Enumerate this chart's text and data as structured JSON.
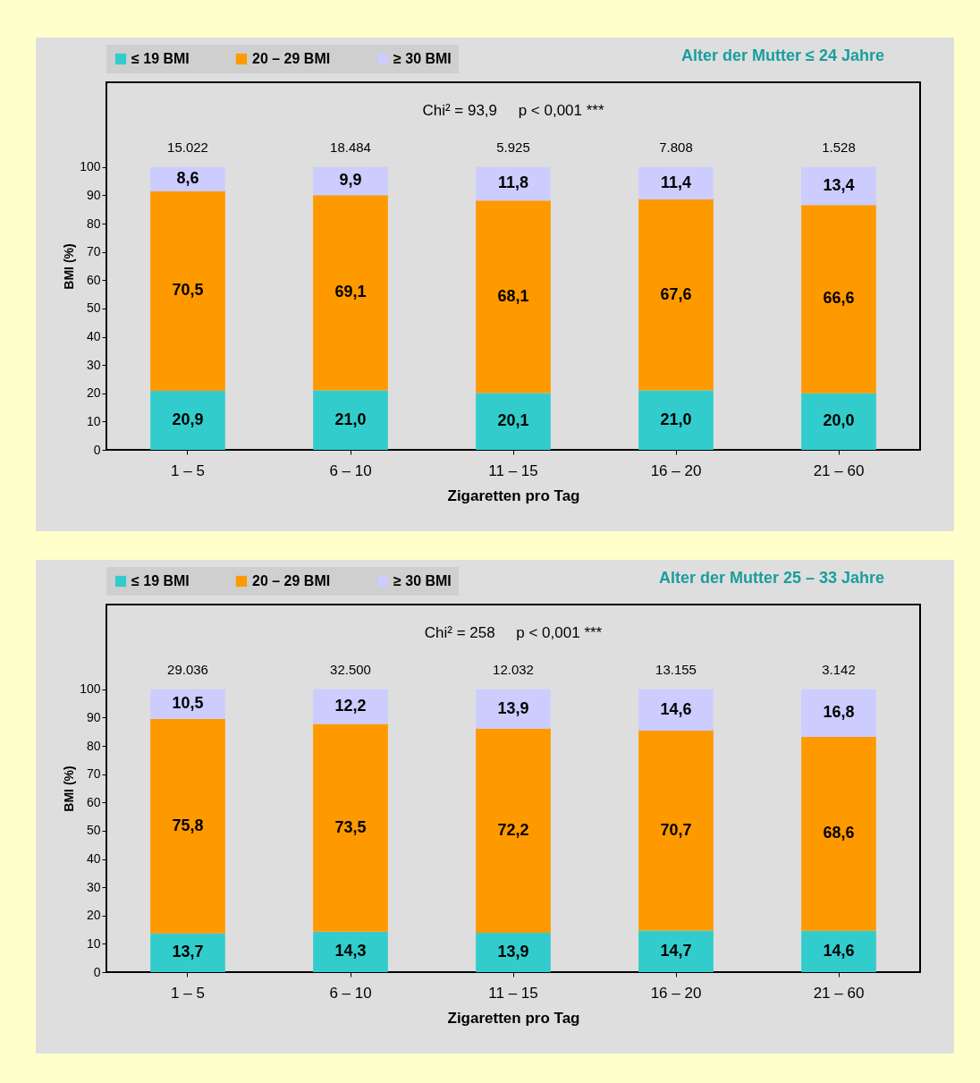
{
  "chart_data": [
    {
      "type": "bar",
      "title": "Alter der Mutter ≤ 24 Jahre",
      "xlabel": "Zigaretten pro Tag",
      "ylabel": "BMI (%)",
      "stacked": true,
      "legend": "top",
      "grid": false,
      "categories": [
        "1 – 5",
        "6 – 10",
        "11 – 15",
        "16 – 20",
        "21 – 60"
      ],
      "ylim": [
        0,
        130
      ],
      "yticks": [
        0,
        10,
        20,
        30,
        40,
        50,
        60,
        70,
        80,
        90,
        100
      ],
      "series": [
        {
          "name": "≤ 19 BMI",
          "color": "#33cccc",
          "values": [
            20.9,
            21.0,
            20.1,
            21.0,
            20.0
          ],
          "value_labels": [
            "20,9",
            "21,0",
            "20,1",
            "21,0",
            "20,0"
          ]
        },
        {
          "name": "20 – 29 BMI",
          "color": "#ff9900",
          "values": [
            70.5,
            69.1,
            68.1,
            67.6,
            66.6
          ],
          "value_labels": [
            "70,5",
            "69,1",
            "68,1",
            "67,6",
            "66,6"
          ]
        },
        {
          "name": "≥ 30 BMI",
          "color": "#ccccff",
          "values": [
            8.6,
            9.9,
            11.8,
            11.4,
            13.4
          ],
          "value_labels": [
            "8,6",
            "9,9",
            "11,8",
            "11,4",
            "13,4"
          ]
        }
      ],
      "annotations": [
        "Chi² = 93,9     p < 0,001 ***",
        "15.022",
        "18.484",
        "5.925",
        "7.808",
        "1.528"
      ]
    },
    {
      "type": "bar",
      "title": "Alter der Mutter 25 – 33 Jahre",
      "xlabel": "Zigaretten pro Tag",
      "ylabel": "BMI (%)",
      "stacked": true,
      "legend": "top",
      "grid": false,
      "categories": [
        "1 – 5",
        "6 – 10",
        "11 – 15",
        "16 – 20",
        "21 – 60"
      ],
      "ylim": [
        0,
        130
      ],
      "yticks": [
        0,
        10,
        20,
        30,
        40,
        50,
        60,
        70,
        80,
        90,
        100
      ],
      "series": [
        {
          "name": "≤ 19 BMI",
          "color": "#33cccc",
          "values": [
            13.7,
            14.3,
            13.9,
            14.7,
            14.6
          ],
          "value_labels": [
            "13,7",
            "14,3",
            "13,9",
            "14,7",
            "14,6"
          ]
        },
        {
          "name": "20 – 29 BMI",
          "color": "#ff9900",
          "values": [
            75.8,
            73.5,
            72.2,
            70.7,
            68.6
          ],
          "value_labels": [
            "75,8",
            "73,5",
            "72,2",
            "70,7",
            "68,6"
          ]
        },
        {
          "name": "≥ 30 BMI",
          "color": "#ccccff",
          "values": [
            10.5,
            12.2,
            13.9,
            14.6,
            16.8
          ],
          "value_labels": [
            "10,5",
            "12,2",
            "13,9",
            "14,6",
            "16,8"
          ]
        }
      ],
      "annotations": [
        "Chi² = 258     p < 0,001 ***",
        "29.036",
        "32.500",
        "12.032",
        "13.155",
        "3.142"
      ]
    }
  ]
}
